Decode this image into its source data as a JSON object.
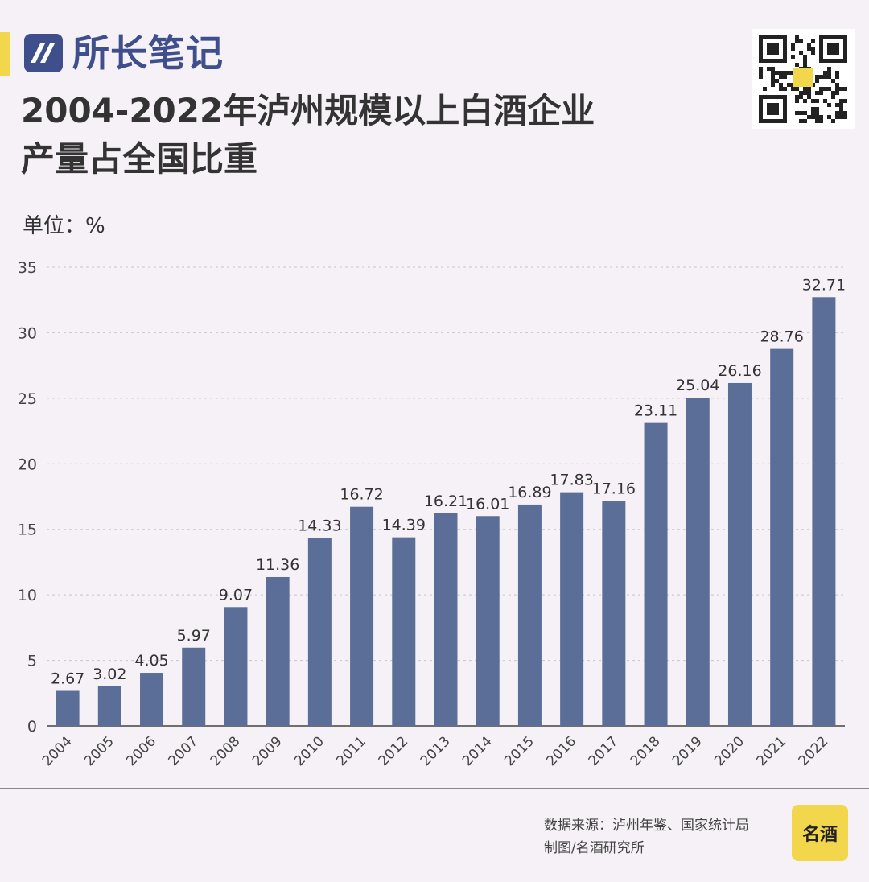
{
  "brand": {
    "name": "所长笔记"
  },
  "title_line1": "2004-2022年泸州规模以上白酒企业",
  "title_line2": "产量占全国比重",
  "unit": "单位：%",
  "source_line1": "数据来源：泸州年鉴、国家统计局",
  "source_line2": "制图/名酒研究所",
  "footer_logo_text": "名酒",
  "colors": {
    "bar": "#5a6e98",
    "accent": "#f2d64b",
    "brand": "#3e4f8c",
    "background": "#f5f1f6"
  },
  "chart_data": {
    "type": "bar",
    "categories": [
      "2004",
      "2005",
      "2006",
      "2007",
      "2008",
      "2009",
      "2010",
      "2011",
      "2012",
      "2013",
      "2014",
      "2015",
      "2016",
      "2017",
      "2018",
      "2019",
      "2020",
      "2021",
      "2022"
    ],
    "values": [
      2.67,
      3.02,
      4.05,
      5.97,
      9.07,
      11.36,
      14.33,
      16.72,
      14.39,
      16.21,
      16.01,
      16.89,
      17.83,
      17.16,
      23.11,
      25.04,
      26.16,
      28.76,
      32.71
    ],
    "value_labels": [
      "2.67",
      "3.02",
      "4.05",
      "5.97",
      "9.07",
      "11.36",
      "14.33",
      "16.72",
      "14.39",
      "16.21",
      "16.01",
      "16.89",
      "17.83",
      "17.16",
      "23.11",
      "25.04",
      "26.16",
      "28.76",
      "32.71"
    ],
    "yticks": [
      "0",
      "5",
      "10",
      "15",
      "20",
      "25",
      "30",
      "35"
    ],
    "ylim": [
      0,
      35
    ],
    "title": "2004-2022年泸州规模以上白酒企业产量占全国比重",
    "xlabel": "",
    "ylabel": "单位：%",
    "grid": true
  }
}
